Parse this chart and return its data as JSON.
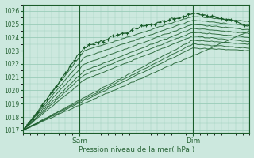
{
  "xlabel": "Pression niveau de la mer( hPa )",
  "ylim": [
    1016.8,
    1026.5
  ],
  "xlim": [
    0,
    96
  ],
  "yticks": [
    1017,
    1018,
    1019,
    1020,
    1021,
    1022,
    1023,
    1024,
    1025,
    1026
  ],
  "bg_color": "#cce8de",
  "grid_color": "#99ccb8",
  "line_color": "#1a5c2a",
  "sam_x": 24,
  "dim_x": 72,
  "tick_label_color": "#2a6638",
  "xlabel_color": "#2a6638",
  "figsize": [
    3.2,
    2.0
  ],
  "dpi": 100
}
